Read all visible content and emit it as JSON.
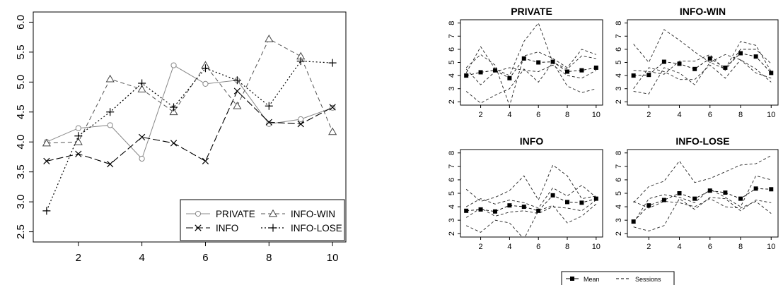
{
  "chart_data": [
    {
      "type": "line",
      "title": "",
      "xlabel": "",
      "ylabel": "",
      "x": [
        1,
        2,
        3,
        4,
        5,
        6,
        7,
        8,
        9,
        10
      ],
      "xlim": [
        1,
        10
      ],
      "ylim": [
        2.5,
        6.0
      ],
      "xticks": [
        "2",
        "4",
        "6",
        "8",
        "10"
      ],
      "yticks": [
        "2.5",
        "3.0",
        "3.5",
        "4.0",
        "4.5",
        "5.0",
        "5.5",
        "6.0"
      ],
      "grid": false,
      "legend_position": "bottom-right",
      "series": [
        {
          "name": "PRIVATE",
          "line": "solid",
          "marker": "circle",
          "values": [
            4.0,
            4.23,
            4.28,
            3.72,
            5.28,
            4.97,
            5.03,
            4.3,
            4.38,
            4.57
          ]
        },
        {
          "name": "INFO",
          "line": "longdash",
          "marker": "x",
          "values": [
            3.68,
            3.8,
            3.63,
            4.08,
            3.98,
            3.68,
            4.85,
            4.33,
            4.3,
            4.58
          ]
        },
        {
          "name": "INFO-WIN",
          "line": "dash",
          "marker": "triangle",
          "values": [
            3.98,
            4.0,
            5.05,
            4.88,
            4.5,
            5.28,
            4.6,
            5.72,
            5.43,
            4.17
          ]
        },
        {
          "name": "INFO-LOSE",
          "line": "dot",
          "marker": "plus",
          "values": [
            2.85,
            4.1,
            4.5,
            4.98,
            4.58,
            5.23,
            5.03,
            4.6,
            5.35,
            5.32
          ]
        }
      ]
    },
    {
      "type": "line",
      "title": "PRIVATE",
      "x": [
        1,
        2,
        3,
        4,
        5,
        6,
        7,
        8,
        9,
        10
      ],
      "xlim": [
        1,
        10
      ],
      "ylim": [
        2,
        8
      ],
      "xticks": [
        "2",
        "4",
        "6",
        "8",
        "10"
      ],
      "yticks": [
        "2",
        "3",
        "4",
        "5",
        "6",
        "7",
        "8"
      ],
      "series": [
        {
          "name": "Mean",
          "values": [
            4.0,
            4.25,
            4.4,
            3.8,
            5.3,
            5.0,
            5.05,
            4.3,
            4.4,
            4.6
          ]
        },
        {
          "values": [
            4.2,
            6.2,
            4.5,
            4.0,
            6.6,
            8.0,
            5.0,
            4.5,
            5.5,
            5.3
          ]
        },
        {
          "values": [
            2.8,
            1.9,
            2.5,
            3.0,
            4.5,
            3.5,
            5.0,
            3.2,
            2.7,
            3.0
          ]
        },
        {
          "values": [
            4.6,
            5.6,
            4.8,
            1.7,
            5.5,
            5.8,
            5.3,
            4.6,
            6.0,
            5.6
          ]
        },
        {
          "values": [
            4.5,
            3.3,
            4.3,
            4.6,
            4.4,
            4.3,
            4.8,
            4.0,
            3.8,
            4.4
          ]
        }
      ]
    },
    {
      "type": "line",
      "title": "INFO-WIN",
      "x": [
        1,
        2,
        3,
        4,
        5,
        6,
        7,
        8,
        9,
        10
      ],
      "xlim": [
        1,
        10
      ],
      "ylim": [
        2,
        8
      ],
      "xticks": [
        "2",
        "4",
        "6",
        "8",
        "10"
      ],
      "yticks": [
        "2",
        "3",
        "4",
        "5",
        "6",
        "7",
        "8"
      ],
      "series": [
        {
          "name": "Mean",
          "values": [
            4.0,
            4.05,
            5.05,
            4.9,
            4.5,
            5.3,
            4.6,
            5.7,
            5.45,
            4.2
          ]
        },
        {
          "values": [
            6.4,
            5.0,
            7.5,
            6.7,
            5.8,
            5.0,
            4.5,
            6.6,
            6.3,
            4.3
          ]
        },
        {
          "values": [
            2.8,
            2.6,
            4.6,
            4.2,
            3.3,
            5.0,
            5.6,
            5.2,
            4.5,
            3.5
          ]
        },
        {
          "values": [
            4.4,
            4.3,
            4.1,
            5.1,
            5.1,
            5.6,
            4.4,
            6.0,
            6.0,
            4.9
          ]
        },
        {
          "values": [
            3.0,
            4.6,
            4.3,
            3.7,
            3.7,
            4.8,
            3.8,
            5.2,
            4.2,
            3.8
          ]
        }
      ]
    },
    {
      "type": "line",
      "title": "INFO",
      "x": [
        1,
        2,
        3,
        4,
        5,
        6,
        7,
        8,
        9,
        10
      ],
      "xlim": [
        1,
        10
      ],
      "ylim": [
        2,
        8
      ],
      "xticks": [
        "2",
        "4",
        "6",
        "8",
        "10"
      ],
      "yticks": [
        "2",
        "3",
        "4",
        "5",
        "6",
        "7",
        "8"
      ],
      "series": [
        {
          "name": "Mean",
          "values": [
            3.7,
            3.8,
            3.65,
            4.1,
            4.0,
            3.7,
            4.85,
            4.35,
            4.3,
            4.6
          ]
        },
        {
          "values": [
            5.3,
            4.4,
            4.7,
            5.2,
            6.3,
            4.5,
            7.1,
            6.3,
            4.6,
            4.8
          ]
        },
        {
          "values": [
            2.6,
            2.1,
            3.0,
            2.8,
            1.6,
            3.7,
            4.1,
            2.8,
            3.3,
            4.2
          ]
        },
        {
          "values": [
            4.0,
            4.6,
            4.2,
            4.5,
            4.3,
            3.9,
            5.4,
            4.8,
            5.6,
            4.7
          ]
        },
        {
          "values": [
            3.2,
            3.9,
            3.3,
            3.6,
            3.7,
            3.5,
            4.0,
            3.9,
            3.7,
            4.5
          ]
        }
      ]
    },
    {
      "type": "line",
      "title": "INFO-LOSE",
      "x": [
        1,
        2,
        3,
        4,
        5,
        6,
        7,
        8,
        9,
        10
      ],
      "xlim": [
        1,
        10
      ],
      "ylim": [
        2,
        8
      ],
      "xticks": [
        "2",
        "4",
        "6",
        "8",
        "10"
      ],
      "yticks": [
        "2",
        "3",
        "4",
        "5",
        "6",
        "7",
        "8"
      ],
      "series": [
        {
          "name": "Mean",
          "values": [
            2.9,
            4.1,
            4.5,
            5.0,
            4.6,
            5.2,
            5.05,
            4.6,
            5.35,
            5.3
          ]
        },
        {
          "values": [
            4.3,
            5.5,
            5.9,
            7.4,
            5.8,
            6.1,
            6.6,
            7.1,
            7.2,
            7.8
          ]
        },
        {
          "values": [
            2.5,
            2.2,
            2.6,
            4.6,
            3.8,
            4.7,
            4.6,
            3.7,
            4.5,
            4.3
          ]
        },
        {
          "values": [
            2.8,
            4.6,
            4.9,
            4.7,
            4.3,
            5.3,
            4.7,
            4.0,
            6.3,
            6.0
          ]
        },
        {
          "values": [
            4.4,
            3.9,
            4.4,
            4.3,
            4.0,
            4.6,
            4.0,
            3.9,
            4.4,
            3.5
          ]
        }
      ]
    }
  ],
  "legend_right": {
    "items": [
      "Mean",
      "Sessions"
    ]
  }
}
